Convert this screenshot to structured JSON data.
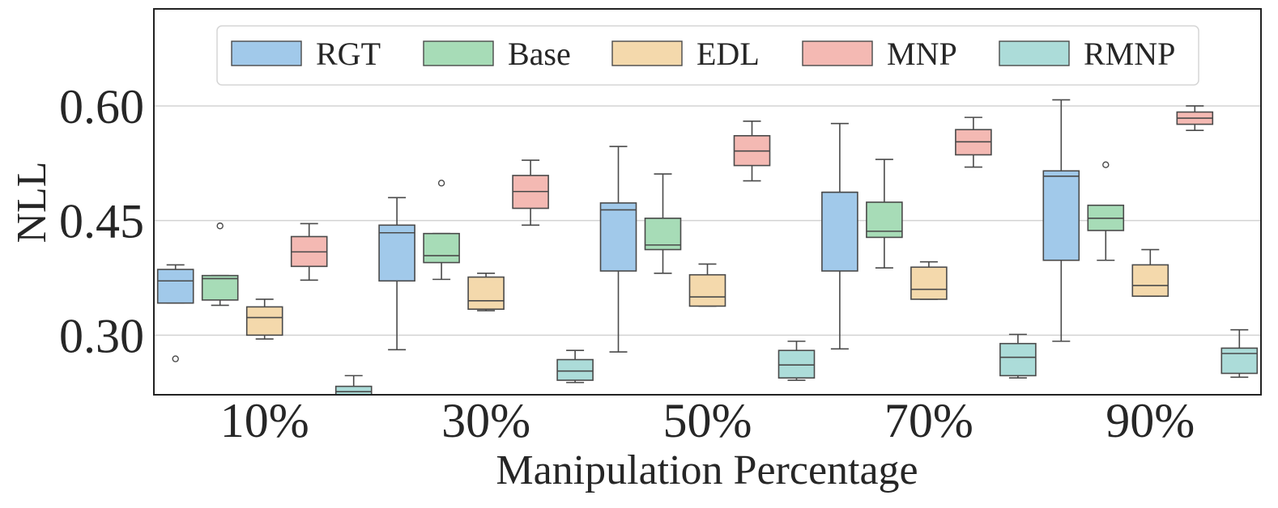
{
  "chart_data": {
    "type": "box",
    "xlabel": "Manipulation Percentage",
    "ylabel": "NLL",
    "ylim": [
      0.222,
      0.727
    ],
    "yticks": [
      "0.30",
      "0.45",
      "0.60"
    ],
    "ytick_values": [
      0.3,
      0.45,
      0.6
    ],
    "categories": [
      "10%",
      "30%",
      "50%",
      "70%",
      "90%"
    ],
    "grid": "horizontal",
    "legend_position": "top-center",
    "series": [
      {
        "name": "RGT",
        "color": "#a1c9ea",
        "boxes": [
          {
            "whisker_low": 0.342,
            "q1": 0.342,
            "median": 0.371,
            "q3": 0.386,
            "whisker_high": 0.392,
            "outliers": [
              0.269
            ]
          },
          {
            "whisker_low": 0.281,
            "q1": 0.371,
            "median": 0.434,
            "q3": 0.444,
            "whisker_high": 0.48,
            "outliers": []
          },
          {
            "whisker_low": 0.278,
            "q1": 0.384,
            "median": 0.464,
            "q3": 0.473,
            "whisker_high": 0.547,
            "outliers": []
          },
          {
            "whisker_low": 0.282,
            "q1": 0.384,
            "median": 0.487,
            "q3": 0.487,
            "whisker_high": 0.577,
            "outliers": []
          },
          {
            "whisker_low": 0.292,
            "q1": 0.398,
            "median": 0.508,
            "q3": 0.515,
            "whisker_high": 0.608,
            "outliers": []
          }
        ]
      },
      {
        "name": "Base",
        "color": "#a7dcb7",
        "boxes": [
          {
            "whisker_low": 0.339,
            "q1": 0.346,
            "median": 0.374,
            "q3": 0.378,
            "whisker_high": 0.378,
            "outliers": [
              0.443
            ]
          },
          {
            "whisker_low": 0.373,
            "q1": 0.395,
            "median": 0.404,
            "q3": 0.433,
            "whisker_high": 0.433,
            "outliers": [
              0.499
            ]
          },
          {
            "whisker_low": 0.381,
            "q1": 0.412,
            "median": 0.418,
            "q3": 0.453,
            "whisker_high": 0.511,
            "outliers": []
          },
          {
            "whisker_low": 0.388,
            "q1": 0.428,
            "median": 0.436,
            "q3": 0.474,
            "whisker_high": 0.53,
            "outliers": []
          },
          {
            "whisker_low": 0.398,
            "q1": 0.437,
            "median": 0.453,
            "q3": 0.47,
            "whisker_high": 0.47,
            "outliers": [
              0.523
            ]
          }
        ]
      },
      {
        "name": "EDL",
        "color": "#f4d9ac",
        "boxes": [
          {
            "whisker_low": 0.295,
            "q1": 0.3,
            "median": 0.323,
            "q3": 0.337,
            "whisker_high": 0.347,
            "outliers": []
          },
          {
            "whisker_low": 0.332,
            "q1": 0.334,
            "median": 0.345,
            "q3": 0.376,
            "whisker_high": 0.381,
            "outliers": []
          },
          {
            "whisker_low": 0.338,
            "q1": 0.338,
            "median": 0.35,
            "q3": 0.379,
            "whisker_high": 0.393,
            "outliers": []
          },
          {
            "whisker_low": 0.347,
            "q1": 0.347,
            "median": 0.36,
            "q3": 0.389,
            "whisker_high": 0.396,
            "outliers": []
          },
          {
            "whisker_low": 0.351,
            "q1": 0.351,
            "median": 0.365,
            "q3": 0.392,
            "whisker_high": 0.412,
            "outliers": []
          }
        ]
      },
      {
        "name": "MNP",
        "color": "#f4b9b3",
        "boxes": [
          {
            "whisker_low": 0.372,
            "q1": 0.39,
            "median": 0.409,
            "q3": 0.429,
            "whisker_high": 0.446,
            "outliers": []
          },
          {
            "whisker_low": 0.444,
            "q1": 0.466,
            "median": 0.488,
            "q3": 0.509,
            "whisker_high": 0.529,
            "outliers": []
          },
          {
            "whisker_low": 0.502,
            "q1": 0.522,
            "median": 0.541,
            "q3": 0.561,
            "whisker_high": 0.58,
            "outliers": []
          },
          {
            "whisker_low": 0.52,
            "q1": 0.536,
            "median": 0.553,
            "q3": 0.569,
            "whisker_high": 0.585,
            "outliers": []
          },
          {
            "whisker_low": 0.568,
            "q1": 0.576,
            "median": 0.584,
            "q3": 0.592,
            "whisker_high": 0.6,
            "outliers": []
          }
        ]
      },
      {
        "name": "RMNP",
        "color": "#acdcd9",
        "boxes": [
          {
            "whisker_low": 0.222,
            "q1": 0.222,
            "median": 0.226,
            "q3": 0.233,
            "whisker_high": 0.247,
            "outliers": []
          },
          {
            "whisker_low": 0.238,
            "q1": 0.241,
            "median": 0.253,
            "q3": 0.268,
            "whisker_high": 0.28,
            "outliers": []
          },
          {
            "whisker_low": 0.241,
            "q1": 0.244,
            "median": 0.261,
            "q3": 0.28,
            "whisker_high": 0.292,
            "outliers": []
          },
          {
            "whisker_low": 0.244,
            "q1": 0.247,
            "median": 0.271,
            "q3": 0.289,
            "whisker_high": 0.301,
            "outliers": []
          },
          {
            "whisker_low": 0.245,
            "q1": 0.25,
            "median": 0.276,
            "q3": 0.283,
            "whisker_high": 0.307,
            "outliers": []
          }
        ]
      }
    ]
  }
}
